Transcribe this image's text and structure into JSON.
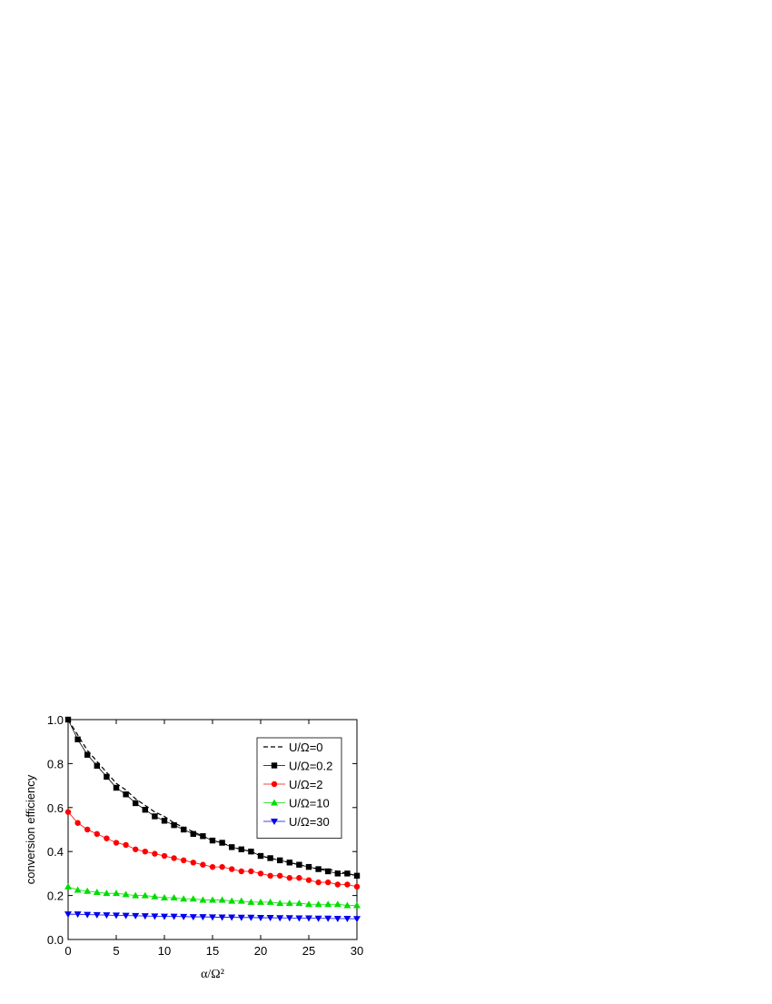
{
  "chart_data": {
    "type": "line",
    "xlabel": "α/Ω²",
    "ylabel": "conversion efficiency",
    "x": [
      0,
      1,
      2,
      3,
      4,
      5,
      6,
      7,
      8,
      9,
      10,
      11,
      12,
      13,
      14,
      15,
      16,
      17,
      18,
      19,
      20,
      21,
      22,
      23,
      24,
      25,
      26,
      27,
      28,
      29,
      30
    ],
    "series": [
      {
        "name": "U/Ω=0",
        "color": "#000000",
        "dash": true,
        "marker": "none",
        "values": [
          1.0,
          0.93,
          0.86,
          0.81,
          0.76,
          0.71,
          0.68,
          0.64,
          0.61,
          0.58,
          0.56,
          0.53,
          0.51,
          0.49,
          0.47,
          0.45,
          0.44,
          0.42,
          0.41,
          0.4,
          0.38,
          0.37,
          0.36,
          0.35,
          0.34,
          0.33,
          0.32,
          0.32,
          0.31,
          0.3,
          0.29
        ]
      },
      {
        "name": "U/Ω=0.2",
        "color": "#000000",
        "dash": false,
        "marker": "square",
        "values": [
          1.0,
          0.91,
          0.84,
          0.79,
          0.74,
          0.69,
          0.66,
          0.62,
          0.59,
          0.56,
          0.54,
          0.52,
          0.5,
          0.48,
          0.47,
          0.45,
          0.44,
          0.42,
          0.41,
          0.4,
          0.38,
          0.37,
          0.36,
          0.35,
          0.34,
          0.33,
          0.32,
          0.31,
          0.3,
          0.3,
          0.29
        ]
      },
      {
        "name": "U/Ω=2",
        "color": "#ff0000",
        "dash": false,
        "marker": "circle",
        "values": [
          0.58,
          0.53,
          0.5,
          0.48,
          0.46,
          0.44,
          0.43,
          0.41,
          0.4,
          0.39,
          0.38,
          0.37,
          0.36,
          0.35,
          0.34,
          0.33,
          0.33,
          0.32,
          0.31,
          0.31,
          0.3,
          0.29,
          0.29,
          0.28,
          0.28,
          0.27,
          0.26,
          0.26,
          0.25,
          0.25,
          0.24
        ]
      },
      {
        "name": "U/Ω=10",
        "color": "#00dd00",
        "dash": false,
        "marker": "triangle-up",
        "values": [
          0.24,
          0.225,
          0.22,
          0.215,
          0.21,
          0.21,
          0.205,
          0.2,
          0.2,
          0.195,
          0.19,
          0.19,
          0.185,
          0.185,
          0.18,
          0.18,
          0.18,
          0.175,
          0.175,
          0.17,
          0.17,
          0.17,
          0.165,
          0.165,
          0.165,
          0.16,
          0.16,
          0.16,
          0.16,
          0.155,
          0.155
        ]
      },
      {
        "name": "U/Ω=30",
        "color": "#0000ee",
        "dash": false,
        "marker": "triangle-down",
        "values": [
          0.115,
          0.115,
          0.113,
          0.112,
          0.111,
          0.11,
          0.109,
          0.108,
          0.107,
          0.106,
          0.105,
          0.105,
          0.104,
          0.103,
          0.103,
          0.102,
          0.101,
          0.101,
          0.1,
          0.1,
          0.099,
          0.099,
          0.098,
          0.098,
          0.097,
          0.097,
          0.096,
          0.096,
          0.095,
          0.095,
          0.094
        ]
      }
    ],
    "xlim": [
      0,
      30
    ],
    "xticks": [
      0,
      5,
      10,
      15,
      20,
      25,
      30
    ],
    "ylim": [
      0,
      1
    ],
    "yticks": [
      {
        "value": 0,
        "label": "0.0"
      },
      {
        "value": 0.2,
        "label": "0.2"
      },
      {
        "value": 0.4,
        "label": "0.4"
      },
      {
        "value": 0.6,
        "label": "0.6"
      },
      {
        "value": 0.8,
        "label": "0.8"
      },
      {
        "value": 1,
        "label": "1.0"
      }
    ],
    "grid": false,
    "legend": "upper right"
  }
}
